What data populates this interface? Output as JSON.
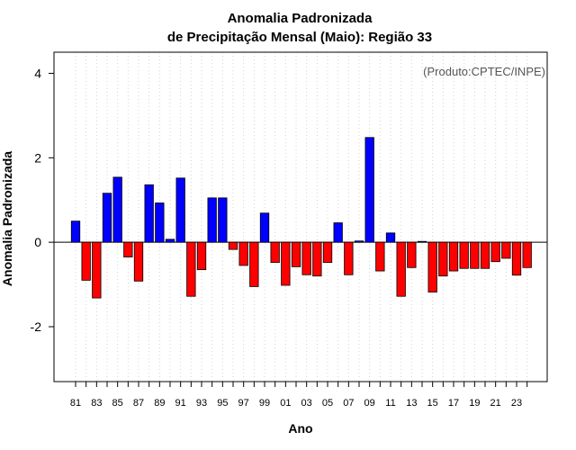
{
  "chart_data": {
    "type": "bar",
    "title_line1": "Anomalia Padronizada",
    "title_line2": "de Precipitação Mensal (Maio): Região 33",
    "xlabel": "Ano",
    "ylabel": "Anomalia Padronizada",
    "credit": "(Produto:CPTEC/INPE)",
    "ylim": [
      -3.3,
      4.5
    ],
    "yticks": [
      -2,
      0,
      2,
      4
    ],
    "ytick_labels": [
      "-2",
      "0",
      "2",
      "4"
    ],
    "grid": "vertical dotted",
    "positive_color": "#0000ff",
    "negative_color": "#ff0000",
    "categories": [
      "81",
      "82",
      "83",
      "84",
      "85",
      "86",
      "87",
      "88",
      "89",
      "90",
      "91",
      "92",
      "93",
      "94",
      "95",
      "96",
      "97",
      "98",
      "99",
      "00",
      "01",
      "02",
      "03",
      "04",
      "05",
      "06",
      "07",
      "08",
      "09",
      "10",
      "11",
      "12",
      "13",
      "14",
      "15",
      "16",
      "17",
      "18",
      "19",
      "20",
      "21",
      "22",
      "23",
      "24"
    ],
    "xtick_labels": [
      "81",
      "83",
      "85",
      "87",
      "89",
      "91",
      "93",
      "95",
      "97",
      "99",
      "01",
      "03",
      "05",
      "07",
      "09",
      "11",
      "13",
      "15",
      "17",
      "19",
      "21",
      "23"
    ],
    "values": [
      0.5,
      -0.9,
      -1.32,
      1.16,
      1.54,
      -0.35,
      -0.92,
      1.36,
      0.93,
      0.07,
      1.52,
      -1.28,
      -0.65,
      1.05,
      1.05,
      -0.17,
      -0.55,
      -1.05,
      0.69,
      -0.48,
      -1.02,
      -0.58,
      -0.77,
      -0.8,
      -0.48,
      0.46,
      -0.77,
      0.03,
      2.48,
      -0.68,
      0.22,
      -1.28,
      -0.6,
      0.02,
      -1.18,
      -0.8,
      -0.68,
      -0.62,
      -0.62,
      -0.62,
      -0.46,
      -0.38,
      -0.78,
      -0.6
    ]
  }
}
